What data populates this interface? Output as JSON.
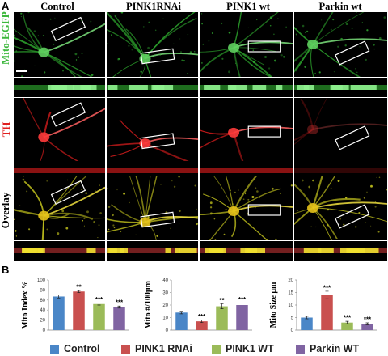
{
  "panel_a_letter": "A",
  "panel_b_letter": "B",
  "columns": [
    "Control",
    "PINK1RNAi",
    "PINK1 wt",
    "Parkin wt"
  ],
  "rows": [
    {
      "label": "Mito-EGFP",
      "color": "#3db83d"
    },
    {
      "label": "TH",
      "color": "#e02020"
    },
    {
      "label": "Overlay",
      "color": "#000000"
    }
  ],
  "colors": {
    "green": "#2ea82e",
    "red": "#d41c1c",
    "yellow": "#d8c020",
    "control": "#4a86c7",
    "rnai": "#c9504f",
    "pink1": "#9bbb59",
    "parkin": "#8064a2"
  },
  "legend": [
    {
      "label": "Control",
      "color": "#4a86c7"
    },
    {
      "label": "PINK1 RNAi",
      "color": "#c9504f"
    },
    {
      "label": "PINK1 WT",
      "color": "#9bbb59"
    },
    {
      "label": "Parkin WT",
      "color": "#8064a2"
    }
  ],
  "chart_data": [
    {
      "type": "bar",
      "categories": [
        "Control",
        "PINK1 RNAi",
        "PINK1 WT",
        "Parkin WT"
      ],
      "values": [
        67,
        77,
        52,
        46
      ],
      "errors": [
        3,
        2,
        2,
        2
      ],
      "significance": [
        "",
        "**",
        "***",
        "***"
      ],
      "ylabel": "Mito Index %",
      "ylim": [
        0,
        100
      ],
      "yticks": [
        0,
        20,
        40,
        60,
        80,
        100
      ]
    },
    {
      "type": "bar",
      "categories": [
        "Control",
        "PINK1 RNAi",
        "PINK1 WT",
        "Parkin WT"
      ],
      "values": [
        14,
        7,
        19,
        20
      ],
      "errors": [
        1,
        1,
        2,
        1.5
      ],
      "significance": [
        "",
        "***",
        "**",
        "***"
      ],
      "ylabel": "Mito #/100μm",
      "ylim": [
        0,
        40
      ],
      "yticks": [
        0,
        10,
        20,
        30,
        40
      ]
    },
    {
      "type": "bar",
      "categories": [
        "Control",
        "PINK1 RNAi",
        "PINK1 WT",
        "Parkin WT"
      ],
      "values": [
        5,
        14,
        3,
        2.5
      ],
      "errors": [
        0.5,
        1.5,
        0.5,
        0.4
      ],
      "significance": [
        "",
        "***",
        "***",
        "***"
      ],
      "ylabel": "Mito Size μm",
      "ylim": [
        0,
        20
      ],
      "yticks": [
        0,
        5,
        10,
        15,
        20
      ]
    }
  ]
}
